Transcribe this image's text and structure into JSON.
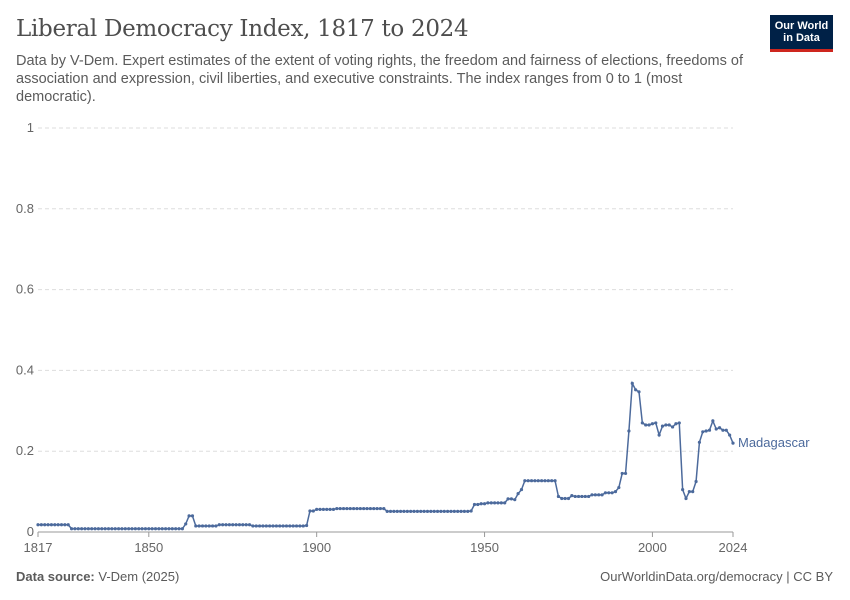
{
  "header": {
    "title": "Liberal Democracy Index, 1817 to 2024",
    "subtitle": "Data by V-Dem. Expert estimates of the extent of voting rights, the freedom and fairness of elections, freedoms of association and expression, civil liberties, and executive constraints. The index ranges from 0 to 1 (most democratic).",
    "logo": "Our World in Data"
  },
  "footer": {
    "source_label": "Data source:",
    "source": "V-Dem (2025)",
    "link": "OurWorldinData.org/democracy | CC BY"
  },
  "chart_data": {
    "type": "line",
    "title": "Liberal Democracy Index, 1817 to 2024",
    "xlabel": "",
    "ylabel": "",
    "xlim": [
      1817,
      2024
    ],
    "ylim": [
      0,
      1
    ],
    "grid": "horizontal dashed",
    "x_ticks": [
      "1817",
      "1850",
      "1900",
      "1950",
      "2000",
      "2024"
    ],
    "y_ticks": [
      "0",
      "0.2",
      "0.4",
      "0.6",
      "0.8",
      "1"
    ],
    "color": "#4c6a9c",
    "series": [
      {
        "name": "Madagascar",
        "x_start": 1817,
        "x_step": 1,
        "values": [
          0.018,
          0.018,
          0.018,
          0.018,
          0.018,
          0.018,
          0.018,
          0.018,
          0.018,
          0.018,
          0.008,
          0.008,
          0.008,
          0.008,
          0.008,
          0.008,
          0.008,
          0.008,
          0.008,
          0.008,
          0.008,
          0.008,
          0.008,
          0.008,
          0.008,
          0.008,
          0.008,
          0.008,
          0.008,
          0.008,
          0.008,
          0.008,
          0.008,
          0.008,
          0.008,
          0.008,
          0.008,
          0.008,
          0.008,
          0.008,
          0.008,
          0.008,
          0.008,
          0.008,
          0.02,
          0.04,
          0.04,
          0.015,
          0.015,
          0.015,
          0.015,
          0.015,
          0.015,
          0.015,
          0.018,
          0.018,
          0.018,
          0.018,
          0.018,
          0.018,
          0.018,
          0.018,
          0.018,
          0.018,
          0.015,
          0.015,
          0.015,
          0.015,
          0.015,
          0.015,
          0.015,
          0.015,
          0.015,
          0.015,
          0.015,
          0.015,
          0.015,
          0.015,
          0.015,
          0.015,
          0.016,
          0.052,
          0.052,
          0.056,
          0.056,
          0.056,
          0.056,
          0.056,
          0.056,
          0.058,
          0.058,
          0.058,
          0.058,
          0.058,
          0.058,
          0.058,
          0.058,
          0.058,
          0.058,
          0.058,
          0.058,
          0.058,
          0.058,
          0.058,
          0.051,
          0.051,
          0.051,
          0.051,
          0.051,
          0.051,
          0.051,
          0.051,
          0.051,
          0.051,
          0.051,
          0.051,
          0.051,
          0.051,
          0.051,
          0.051,
          0.051,
          0.051,
          0.051,
          0.051,
          0.051,
          0.051,
          0.051,
          0.051,
          0.051,
          0.052,
          0.068,
          0.068,
          0.07,
          0.07,
          0.072,
          0.072,
          0.072,
          0.072,
          0.072,
          0.072,
          0.082,
          0.082,
          0.08,
          0.095,
          0.105,
          0.127,
          0.127,
          0.127,
          0.127,
          0.127,
          0.127,
          0.127,
          0.127,
          0.127,
          0.127,
          0.088,
          0.083,
          0.083,
          0.083,
          0.09,
          0.088,
          0.088,
          0.088,
          0.088,
          0.088,
          0.092,
          0.092,
          0.092,
          0.092,
          0.097,
          0.097,
          0.097,
          0.1,
          0.11,
          0.145,
          0.145,
          0.25,
          0.368,
          0.352,
          0.347,
          0.27,
          0.265,
          0.265,
          0.268,
          0.27,
          0.24,
          0.262,
          0.265,
          0.265,
          0.26,
          0.268,
          0.27,
          0.105,
          0.083,
          0.1,
          0.1,
          0.125,
          0.222,
          0.248,
          0.25,
          0.252,
          0.275,
          0.255,
          0.258,
          0.252,
          0.252,
          0.24,
          0.22
        ]
      }
    ]
  }
}
